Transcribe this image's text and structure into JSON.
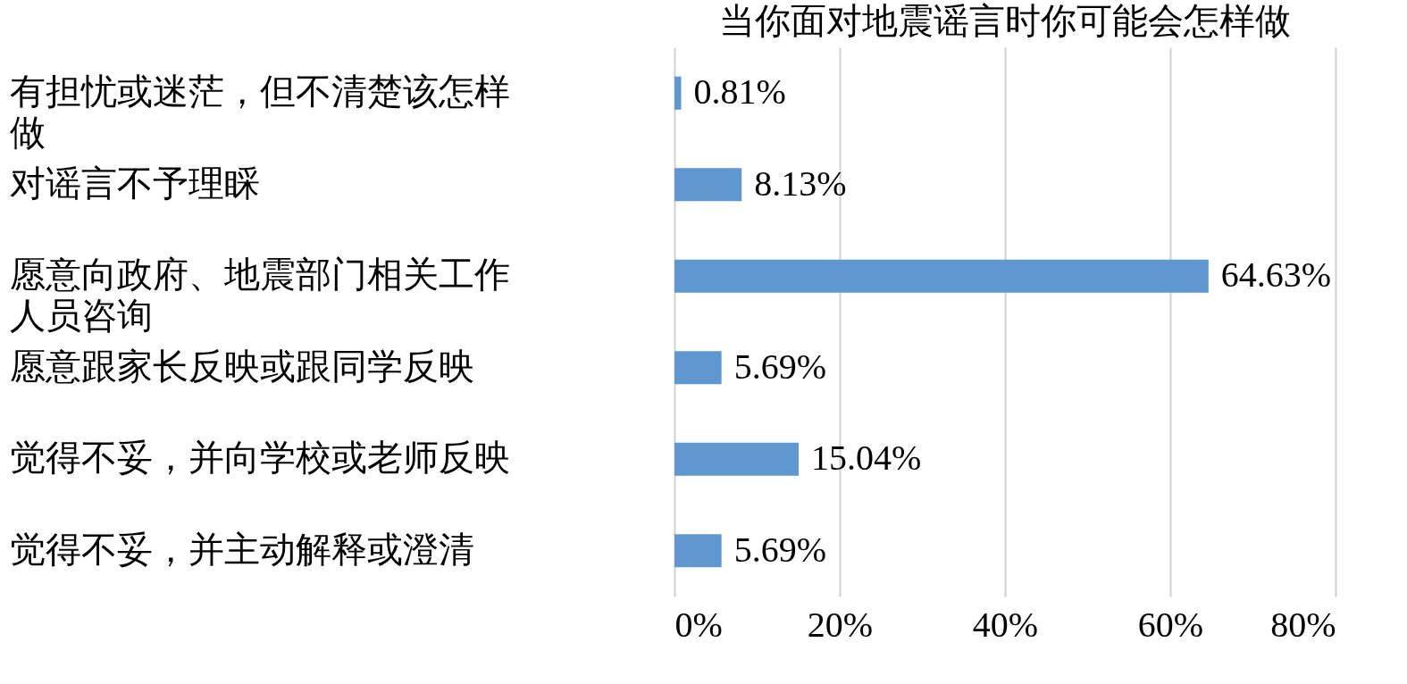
{
  "chart_data": {
    "type": "bar",
    "orientation": "horizontal",
    "title": "当你面对地震谣言时你可能会怎样做",
    "categories": [
      "有担忧或迷茫，但不清楚该怎样做",
      "对谣言不予理睬",
      "愿意向政府、地震部门相关工作人员咨询",
      "愿意跟家长反映或跟同学反映",
      "觉得不妥，并向学校或老师反映",
      "觉得不妥，并主动解释或澄清"
    ],
    "values": [
      0.81,
      8.13,
      64.63,
      5.69,
      15.04,
      5.69
    ],
    "value_labels": [
      "0.81%",
      "8.13%",
      "64.63%",
      "5.69%",
      "15.04%",
      "5.69%"
    ],
    "color": "#5f97d0",
    "xlim": [
      0,
      80
    ],
    "xticks": [
      {
        "value": 0,
        "label": "0%"
      },
      {
        "value": 20,
        "label": "20%"
      },
      {
        "value": 40,
        "label": "40%"
      },
      {
        "value": 60,
        "label": "60%"
      },
      {
        "value": 80,
        "label": "80%"
      }
    ],
    "grid": "x",
    "legend": false
  }
}
